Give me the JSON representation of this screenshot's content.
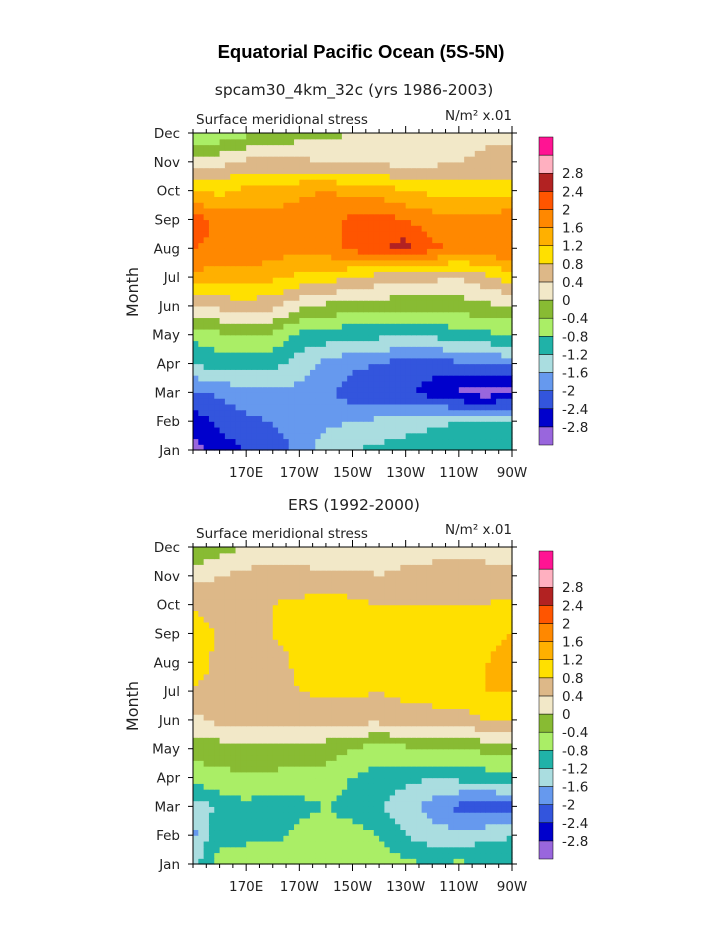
{
  "title": "Equatorial Pacific Ocean (5S-5N)",
  "colors": {
    "levels": [
      "#9966dd",
      "#0000cc",
      "#3355dd",
      "#6699ee",
      "#aadde0",
      "#20b2a8",
      "#aaee66",
      "#88bb33",
      "#f2e8c8",
      "#ddb888",
      "#ffe000",
      "#ffb000",
      "#ff8800",
      "#ff5500",
      "#b22222",
      "#ffb0c0",
      "#ff1493"
    ]
  },
  "chart_data": [
    {
      "type": "heatmap",
      "title": "spcam30_4km_32c (yrs 1986-2003)",
      "subtitle_left": "Surface meridional stress",
      "units": "N/m² x.01",
      "ylabel": "Month",
      "xlabel": "",
      "y_categories": [
        "Jan",
        "Feb",
        "Mar",
        "Apr",
        "May",
        "Jun",
        "Jul",
        "Aug",
        "Sep",
        "Oct",
        "Nov",
        "Dec"
      ],
      "x_tick_labels": [
        "170E",
        "170W",
        "150W",
        "130W",
        "110W",
        "90W"
      ],
      "x_range": [
        "150E",
        "90W"
      ],
      "legend_levels": [
        "2.8",
        "2.4",
        "2",
        "1.6",
        "1.2",
        "0.8",
        "0.4",
        "0",
        "-0.4",
        "-0.8",
        "-1.2",
        "-1.6",
        "-2",
        "-2.4",
        "-2.8"
      ],
      "legend_placement": "right",
      "lons": [
        150,
        160,
        170,
        180,
        190,
        200,
        210,
        220,
        230,
        240,
        250,
        260,
        270
      ],
      "values": [
        [
          -3.0,
          -2.6,
          -2.4,
          -2.3,
          -1.9,
          -1.4,
          -1.2,
          -1.1,
          -1.0,
          -0.9,
          -0.8,
          -0.8,
          -0.8
        ],
        [
          -2.6,
          -2.3,
          -2.1,
          -2.0,
          -1.7,
          -1.7,
          -1.6,
          -1.5,
          -1.4,
          -1.3,
          -1.2,
          -1.1,
          -1.1
        ],
        [
          -2.1,
          -1.9,
          -1.8,
          -1.7,
          -1.7,
          -1.9,
          -2.2,
          -2.4,
          -2.3,
          -2.6,
          -2.9,
          -3.0,
          -2.9
        ],
        [
          -1.2,
          -1.0,
          -1.0,
          -1.1,
          -1.4,
          -1.7,
          -1.9,
          -2.0,
          -2.2,
          -2.2,
          -2.1,
          -2.0,
          -1.9
        ],
        [
          -0.7,
          -0.5,
          -0.4,
          -0.5,
          -0.9,
          -1.0,
          -1.1,
          -1.1,
          -1.2,
          -1.1,
          -1.0,
          -0.9,
          -0.8
        ],
        [
          0.3,
          0.5,
          0.6,
          0.5,
          0.1,
          -0.1,
          -0.2,
          -0.2,
          -0.3,
          -0.3,
          -0.2,
          -0.1,
          0.0
        ],
        [
          1.5,
          1.4,
          1.4,
          1.3,
          1.1,
          1.0,
          0.8,
          0.6,
          0.5,
          0.5,
          0.4,
          0.7,
          1.0
        ],
        [
          2.0,
          1.9,
          1.9,
          1.8,
          1.7,
          1.8,
          2.1,
          2.3,
          2.6,
          2.1,
          1.9,
          1.9,
          2.0
        ],
        [
          2.2,
          1.9,
          1.9,
          1.8,
          1.8,
          1.9,
          2.1,
          2.2,
          2.0,
          1.8,
          1.7,
          1.8,
          1.9
        ],
        [
          1.2,
          1.1,
          1.3,
          1.3,
          1.5,
          1.6,
          1.5,
          1.4,
          1.2,
          1.1,
          1.1,
          1.0,
          1.0
        ],
        [
          0.1,
          0.3,
          0.5,
          0.5,
          0.5,
          0.4,
          0.3,
          0.3,
          0.3,
          0.3,
          0.4,
          0.5,
          0.5
        ],
        [
          -0.9,
          -0.7,
          -0.5,
          -0.3,
          -0.2,
          -0.1,
          0.0,
          0.1,
          0.2,
          0.2,
          0.2,
          0.3,
          0.3
        ]
      ]
    },
    {
      "type": "heatmap",
      "title": "ERS (1992-2000)",
      "subtitle_left": "Surface meridional stress",
      "units": "N/m² x.01",
      "ylabel": "Month",
      "xlabel": "",
      "y_categories": [
        "Jan",
        "Feb",
        "Mar",
        "Apr",
        "May",
        "Jun",
        "Jul",
        "Aug",
        "Sep",
        "Oct",
        "Nov",
        "Dec"
      ],
      "x_tick_labels": [
        "170E",
        "170W",
        "150W",
        "130W",
        "110W",
        "90W"
      ],
      "x_range": [
        "150E",
        "90W"
      ],
      "legend_levels": [
        "2.8",
        "2.4",
        "2",
        "1.6",
        "1.2",
        "0.8",
        "0.4",
        "0",
        "-0.4",
        "-0.8",
        "-1.2",
        "-1.6",
        "-2",
        "-2.4",
        "-2.8"
      ],
      "legend_placement": "right",
      "lons": [
        150,
        160,
        170,
        180,
        190,
        200,
        210,
        220,
        230,
        240,
        250,
        260,
        270
      ],
      "values": [
        [
          -1.3,
          -0.6,
          -0.8,
          -0.5,
          -0.6,
          -0.6,
          -0.5,
          -0.6,
          -0.7,
          -0.8,
          -0.7,
          -0.8,
          -1.0
        ],
        [
          -1.7,
          -0.9,
          -0.8,
          -0.9,
          -0.7,
          -0.6,
          -0.6,
          -0.8,
          -1.2,
          -1.4,
          -1.5,
          -1.3,
          -1.2
        ],
        [
          -1.5,
          -1.1,
          -0.9,
          -1.0,
          -0.9,
          -0.8,
          -1.0,
          -1.2,
          -1.4,
          -1.8,
          -2.1,
          -2.3,
          -2.2
        ],
        [
          -0.6,
          -0.5,
          -0.5,
          -0.5,
          -0.6,
          -0.6,
          -0.8,
          -1.0,
          -1.1,
          -1.2,
          -1.1,
          -1.0,
          -0.9
        ],
        [
          -0.3,
          -0.2,
          -0.1,
          -0.1,
          -0.2,
          -0.2,
          -0.4,
          -0.6,
          -0.5,
          -0.4,
          -0.4,
          -0.3,
          -0.3
        ],
        [
          0.3,
          0.5,
          0.6,
          0.6,
          0.5,
          0.5,
          0.5,
          0.5,
          0.6,
          0.6,
          0.6,
          0.8,
          0.9
        ],
        [
          0.8,
          0.6,
          0.7,
          0.6,
          0.8,
          0.9,
          0.9,
          0.8,
          0.9,
          1.0,
          1.0,
          1.2,
          1.2
        ],
        [
          1.0,
          0.7,
          0.7,
          0.6,
          0.9,
          1.1,
          1.0,
          0.9,
          1.0,
          1.1,
          1.0,
          1.2,
          1.3
        ],
        [
          1.1,
          0.7,
          0.7,
          0.8,
          1.0,
          1.1,
          1.0,
          1.1,
          1.0,
          1.0,
          1.0,
          1.1,
          1.2
        ],
        [
          0.7,
          0.6,
          0.7,
          0.8,
          0.9,
          1.0,
          0.9,
          0.8,
          0.8,
          0.8,
          0.8,
          0.8,
          0.9
        ],
        [
          0.3,
          0.4,
          0.5,
          0.6,
          0.5,
          0.5,
          0.5,
          0.4,
          0.5,
          0.5,
          0.6,
          0.6,
          0.5
        ],
        [
          -0.5,
          -0.2,
          0.1,
          0.2,
          0.2,
          0.1,
          0.1,
          0.2,
          0.2,
          0.3,
          0.3,
          0.2,
          0.2
        ]
      ]
    }
  ]
}
